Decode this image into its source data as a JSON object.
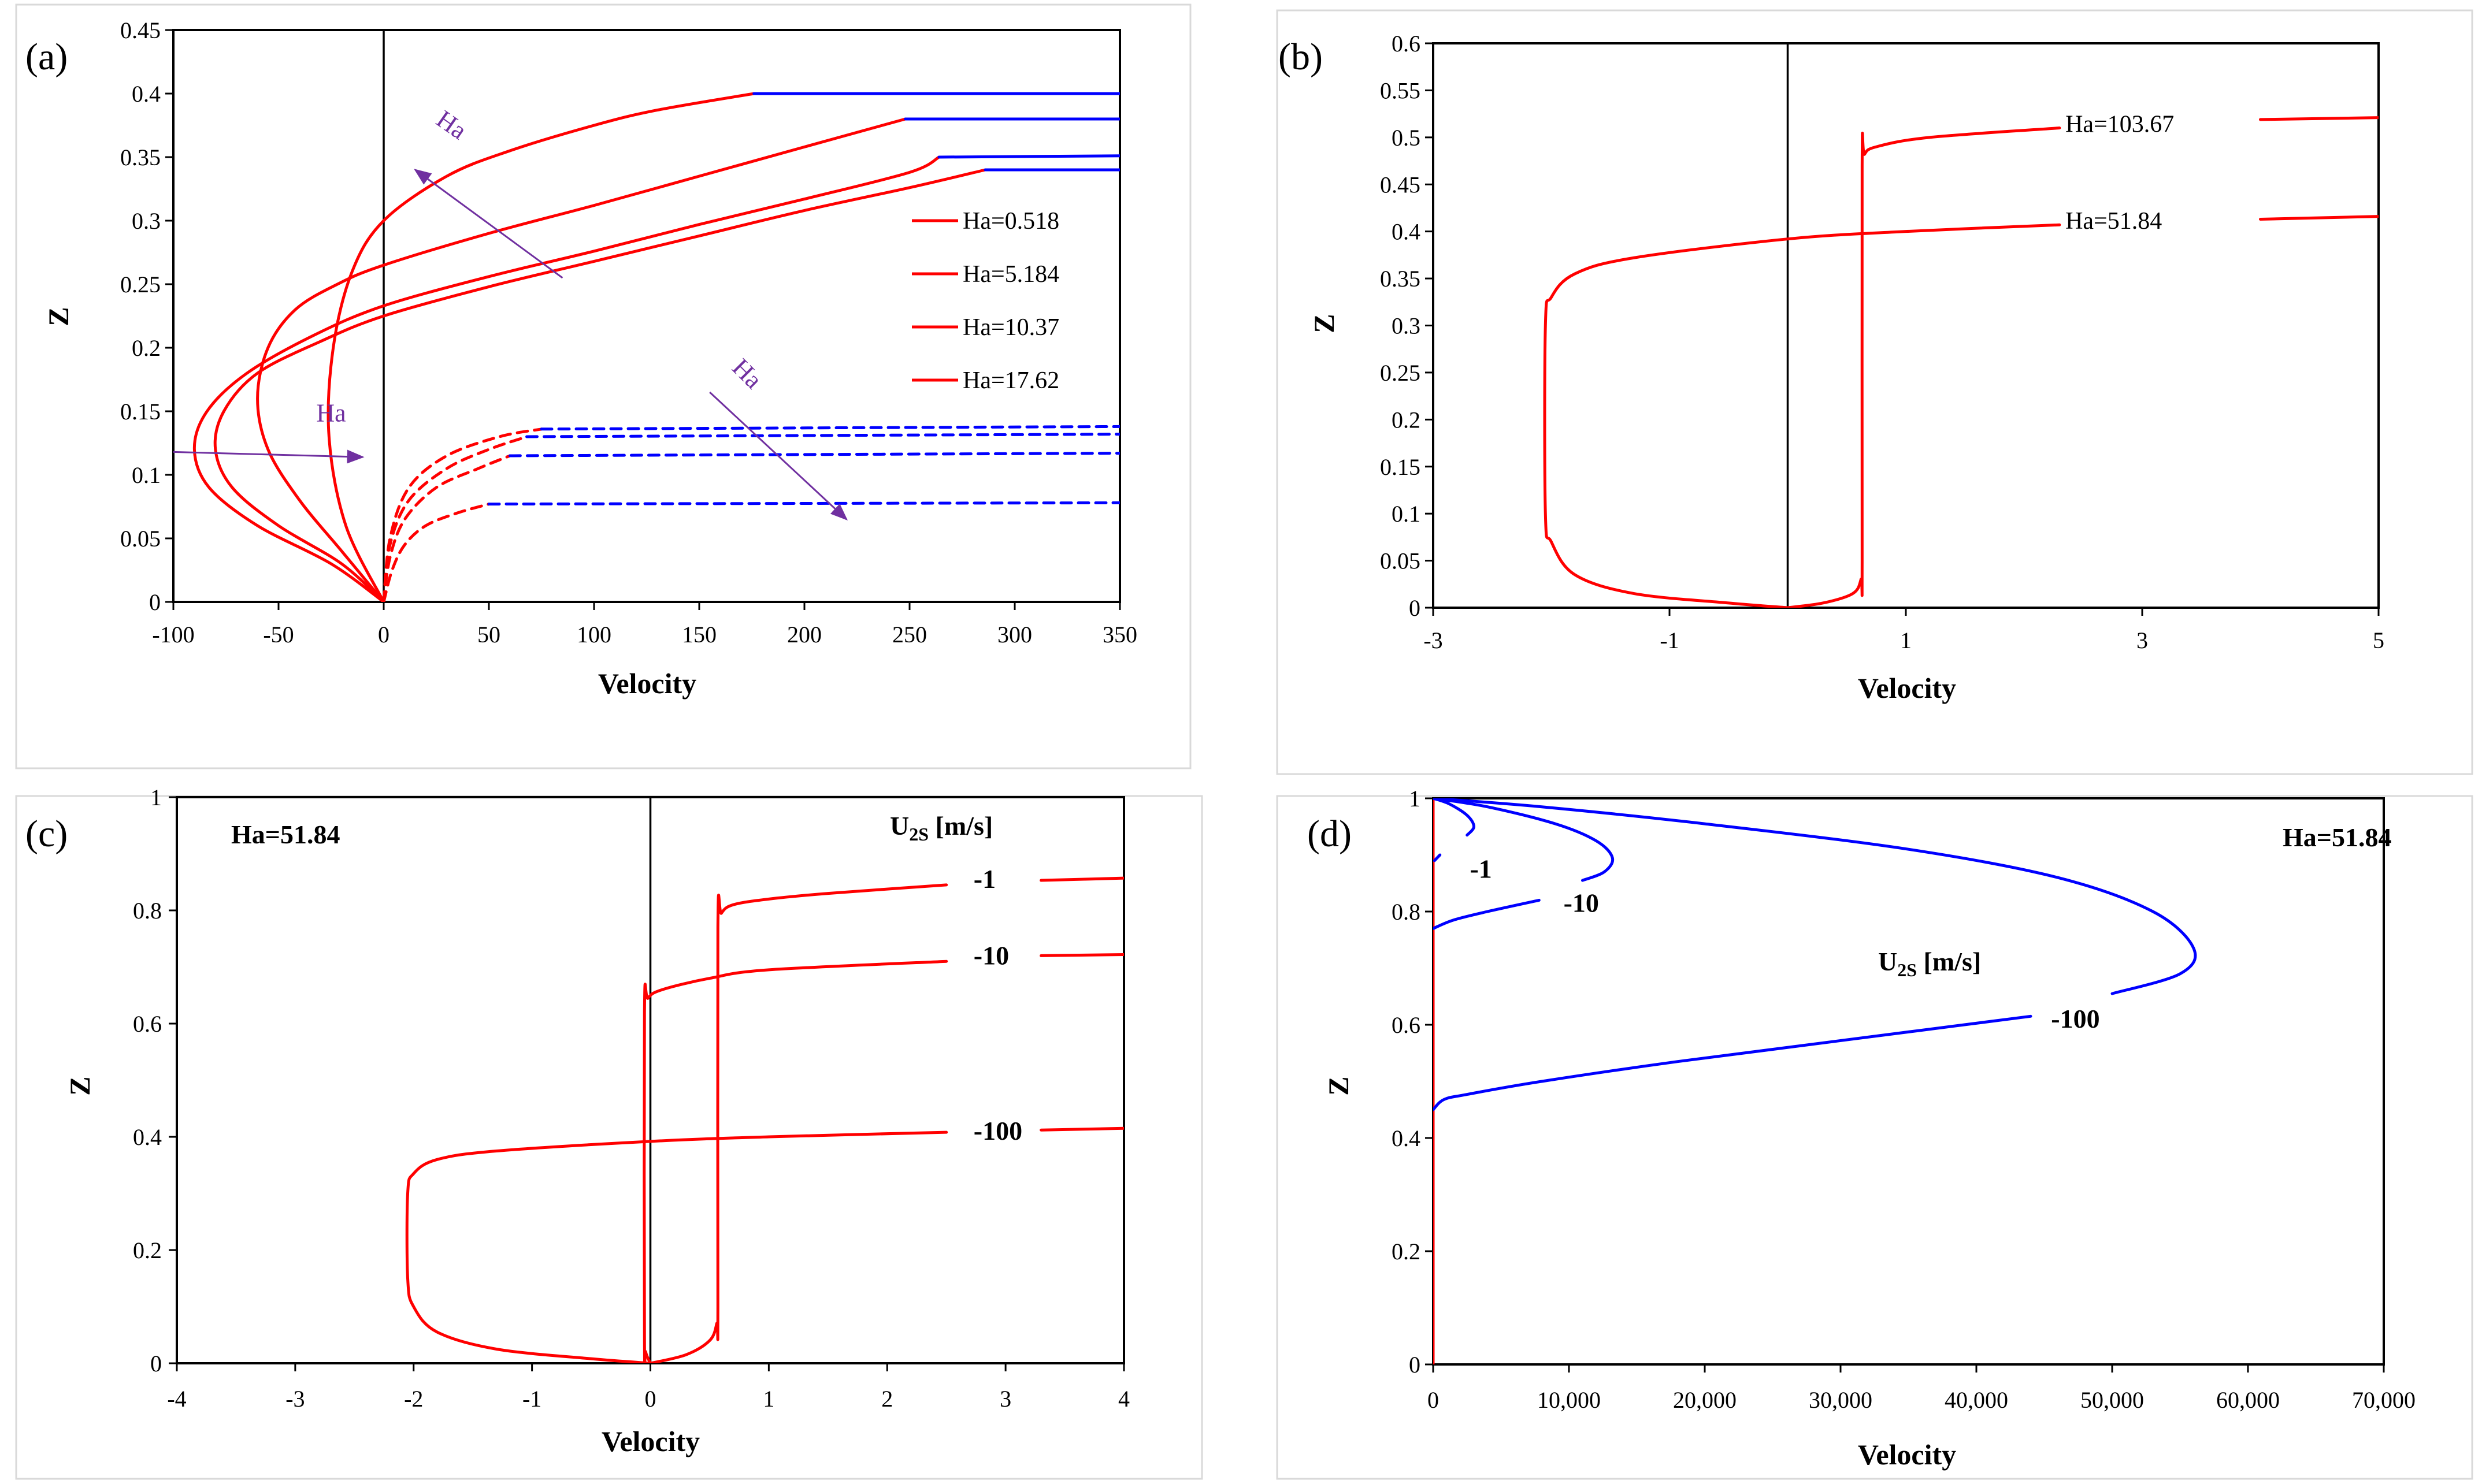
{
  "colors": {
    "red": "#ff0000",
    "blue": "#0000ff",
    "purple": "#7030a0",
    "black": "#000000"
  },
  "chart_data": [
    {
      "panel": "(a)",
      "type": "line",
      "xlabel": "Velocity",
      "ylabel": "Z",
      "xlim": [
        -100,
        350
      ],
      "ylim": [
        0,
        0.45
      ],
      "xticks": [
        -100,
        -50,
        0,
        50,
        100,
        150,
        200,
        250,
        300,
        350
      ],
      "yticks": [
        0,
        0.05,
        0.1,
        0.15,
        0.2,
        0.25,
        0.3,
        0.35,
        0.4,
        0.45
      ],
      "legend_position": "right",
      "legend": [
        "Ha=0.518",
        "Ha=5.184",
        "Ha=10.37",
        "Ha=17.62"
      ],
      "annotations": [
        "Ha",
        "Ha",
        "Ha"
      ],
      "series": [
        {
          "name": "Ha=0.518",
          "style": "solid",
          "color": "#ff0000",
          "x": [
            0,
            -20,
            -50,
            -72,
            -80,
            -76,
            -60,
            -30,
            0,
            50,
            100,
            150,
            200,
            250,
            286
          ],
          "y": [
            0,
            0.03,
            0.06,
            0.09,
            0.12,
            0.15,
            0.18,
            0.205,
            0.225,
            0.248,
            0.268,
            0.288,
            0.308,
            0.326,
            0.34
          ]
        },
        {
          "name": "Ha=0.518 (lower)",
          "style": "dashed",
          "color": "#ff0000",
          "x": [
            0,
            4,
            10,
            20,
            35,
            50
          ],
          "y": [
            0,
            0.025,
            0.045,
            0.06,
            0.07,
            0.077
          ]
        },
        {
          "name": "Ha=0.518 (lower ext)",
          "style": "dashed",
          "color": "#0000ff",
          "x": [
            50,
            350
          ],
          "y": [
            0.077,
            0.078
          ]
        },
        {
          "name": "Ha=0.518 (upper ext)",
          "style": "solid",
          "color": "#0000ff",
          "x": [
            286,
            350
          ],
          "y": [
            0.34,
            0.34
          ]
        },
        {
          "name": "Ha=5.184",
          "style": "solid",
          "color": "#ff0000",
          "x": [
            0,
            -25,
            -60,
            -83,
            -90,
            -84,
            -65,
            -33,
            0,
            50,
            100,
            150,
            200,
            250,
            264
          ],
          "y": [
            0,
            0.03,
            0.06,
            0.09,
            0.12,
            0.15,
            0.18,
            0.21,
            0.233,
            0.256,
            0.276,
            0.297,
            0.317,
            0.338,
            0.35
          ]
        },
        {
          "name": "Ha=5.184 (lower)",
          "style": "dashed",
          "color": "#ff0000",
          "x": [
            0,
            3,
            10,
            25,
            45,
            60
          ],
          "y": [
            0,
            0.035,
            0.065,
            0.09,
            0.105,
            0.115
          ]
        },
        {
          "name": "Ha=5.184 (lower ext)",
          "style": "dashed",
          "color": "#0000ff",
          "x": [
            60,
            350
          ],
          "y": [
            0.115,
            0.117
          ]
        },
        {
          "name": "Ha=5.184 (upper ext)",
          "style": "solid",
          "color": "#0000ff",
          "x": [
            264,
            350
          ],
          "y": [
            0.35,
            0.351
          ]
        },
        {
          "name": "Ha=10.37",
          "style": "solid",
          "color": "#ff0000",
          "x": [
            0,
            -20,
            -40,
            -55,
            -60,
            -55,
            -42,
            -22,
            0,
            50,
            100,
            150,
            200,
            248
          ],
          "y": [
            0,
            0.04,
            0.08,
            0.12,
            0.16,
            0.2,
            0.23,
            0.25,
            0.265,
            0.29,
            0.312,
            0.335,
            0.358,
            0.38
          ]
        },
        {
          "name": "Ha=10.37 (lower)",
          "style": "dashed",
          "color": "#ff0000",
          "x": [
            0,
            3,
            12,
            30,
            50,
            68
          ],
          "y": [
            0,
            0.045,
            0.08,
            0.105,
            0.12,
            0.13
          ]
        },
        {
          "name": "Ha=10.37 (lower ext)",
          "style": "dashed",
          "color": "#0000ff",
          "x": [
            68,
            350
          ],
          "y": [
            0.13,
            0.132
          ]
        },
        {
          "name": "Ha=10.37 (upper ext)",
          "style": "solid",
          "color": "#0000ff",
          "x": [
            248,
            350
          ],
          "y": [
            0.38,
            0.38
          ]
        },
        {
          "name": "Ha=17.62",
          "style": "solid",
          "color": "#ff0000",
          "x": [
            0,
            -18,
            -26,
            -24,
            -15,
            0,
            30,
            60,
            100,
            130,
            176
          ],
          "y": [
            0,
            0.06,
            0.13,
            0.2,
            0.26,
            0.3,
            0.335,
            0.355,
            0.375,
            0.387,
            0.4
          ]
        },
        {
          "name": "Ha=17.62 (lower)",
          "style": "dashed",
          "color": "#ff0000",
          "x": [
            0,
            3,
            12,
            30,
            55,
            75
          ],
          "y": [
            0,
            0.05,
            0.09,
            0.115,
            0.13,
            0.136
          ]
        },
        {
          "name": "Ha=17.62 (lower ext)",
          "style": "dashed",
          "color": "#0000ff",
          "x": [
            75,
            350
          ],
          "y": [
            0.136,
            0.138
          ]
        },
        {
          "name": "Ha=17.62 (upper ext)",
          "style": "solid",
          "color": "#0000ff",
          "x": [
            176,
            350
          ],
          "y": [
            0.4,
            0.4
          ]
        }
      ]
    },
    {
      "panel": "(b)",
      "type": "line",
      "xlabel": "Velocity",
      "ylabel": "Z",
      "xlim": [
        -3,
        5
      ],
      "ylim": [
        0,
        0.6
      ],
      "xticks": [
        -3,
        -1,
        1,
        3,
        5
      ],
      "yticks": [
        0,
        0.05,
        0.1,
        0.15,
        0.2,
        0.25,
        0.3,
        0.35,
        0.4,
        0.45,
        0.5,
        0.55,
        0.6
      ],
      "labels": [
        {
          "text": "Ha=103.67",
          "x": 2.35,
          "y": 0.515
        },
        {
          "text": "Ha=51.84",
          "x": 2.35,
          "y": 0.412
        }
      ],
      "series": [
        {
          "name": "Ha=51.84",
          "style": "solid",
          "color": "#ff0000",
          "x": [
            0,
            -0.5,
            -1.3,
            -1.8,
            -2.0,
            -2.05,
            -2.05,
            -2.0,
            -1.8,
            -1.3,
            0,
            1.0,
            2.3
          ],
          "y": [
            0,
            0.005,
            0.015,
            0.035,
            0.07,
            0.1,
            0.3,
            0.33,
            0.355,
            0.372,
            0.392,
            0.4,
            0.407
          ]
        },
        {
          "name": "Ha=51.84 (ext)",
          "style": "solid",
          "color": "#ff0000",
          "x": [
            4.0,
            5.0
          ],
          "y": [
            0.413,
            0.416
          ]
        },
        {
          "name": "Ha=103.67",
          "style": "solid",
          "color": "#ff0000",
          "x": [
            0,
            0.3,
            0.55,
            0.62,
            0.63,
            0.63,
            0.65,
            0.75,
            1.2,
            2.3
          ],
          "y": [
            0,
            0.005,
            0.015,
            0.03,
            0.05,
            0.47,
            0.482,
            0.49,
            0.5,
            0.51
          ]
        },
        {
          "name": "Ha=103.67 (ext)",
          "style": "solid",
          "color": "#ff0000",
          "x": [
            4.0,
            5.0
          ],
          "y": [
            0.519,
            0.521
          ]
        }
      ]
    },
    {
      "panel": "(c)",
      "type": "line",
      "title": "Ha=51.84",
      "xlabel": "Velocity",
      "ylabel": "Z",
      "xlim": [
        -4,
        4
      ],
      "ylim": [
        0,
        1
      ],
      "xticks": [
        -4,
        -3,
        -2,
        -1,
        0,
        1,
        2,
        3,
        4
      ],
      "yticks": [
        0,
        0.2,
        0.4,
        0.6,
        0.8,
        1
      ],
      "legend_title": "U2S [m/s]",
      "labels": [
        {
          "text": "-1",
          "x": 2.73,
          "y": 0.855
        },
        {
          "text": "-10",
          "x": 2.73,
          "y": 0.72
        },
        {
          "text": "-100",
          "x": 2.73,
          "y": 0.41
        }
      ],
      "series": [
        {
          "name": "-1",
          "style": "solid",
          "color": "#ff0000",
          "x": [
            0,
            0.3,
            0.5,
            0.56,
            0.57,
            0.57,
            0.6,
            0.7,
            1.0,
            1.5,
            2.5
          ],
          "y": [
            0,
            0.015,
            0.04,
            0.07,
            0.1,
            0.77,
            0.795,
            0.81,
            0.82,
            0.83,
            0.845
          ]
        },
        {
          "name": "-1 (ext)",
          "style": "solid",
          "color": "#ff0000",
          "x": [
            3.3,
            4.0
          ],
          "y": [
            0.853,
            0.857
          ]
        },
        {
          "name": "-10",
          "style": "solid",
          "color": "#ff0000",
          "x": [
            0,
            -0.04,
            -0.05,
            -0.05,
            -0.02,
            0.1,
            0.5,
            1.0,
            2.5
          ],
          "y": [
            0,
            0.02,
            0.05,
            0.62,
            0.645,
            0.66,
            0.68,
            0.695,
            0.71
          ]
        },
        {
          "name": "-10 (ext)",
          "style": "solid",
          "color": "#ff0000",
          "x": [
            3.3,
            4.0
          ],
          "y": [
            0.72,
            0.722
          ]
        },
        {
          "name": "-100",
          "style": "solid",
          "color": "#ff0000",
          "x": [
            0,
            -0.5,
            -1.3,
            -1.8,
            -2.0,
            -2.05,
            -2.05,
            -2.0,
            -1.8,
            -1.3,
            0,
            1.0,
            2.5
          ],
          "y": [
            0,
            0.008,
            0.025,
            0.055,
            0.1,
            0.15,
            0.3,
            0.335,
            0.36,
            0.375,
            0.392,
            0.4,
            0.408
          ]
        },
        {
          "name": "-100 (ext)",
          "style": "solid",
          "color": "#ff0000",
          "x": [
            3.3,
            4.0
          ],
          "y": [
            0.412,
            0.415
          ]
        }
      ]
    },
    {
      "panel": "(d)",
      "type": "line",
      "title": "Ha=51.84",
      "xlabel": "Velocity",
      "ylabel": "Z",
      "xlim": [
        0,
        70000
      ],
      "ylim": [
        0,
        1
      ],
      "xticks": [
        "0",
        "10,000",
        "20,000",
        "30,000",
        "40,000",
        "50,000",
        "60,000",
        "70,000"
      ],
      "yticks": [
        0,
        0.2,
        0.4,
        0.6,
        0.8,
        1
      ],
      "legend_title": "U2S [m/s]",
      "labels": [
        {
          "text": "-1",
          "x": 2700,
          "y": 0.875
        },
        {
          "text": "-10",
          "x": 9600,
          "y": 0.815
        },
        {
          "text": "-100",
          "x": 45500,
          "y": 0.61
        }
      ],
      "series": [
        {
          "name": "-1 (red)",
          "style": "solid",
          "color": "#ff0000",
          "x": [
            0,
            0
          ],
          "y": [
            0,
            1
          ]
        },
        {
          "name": "-1",
          "style": "solid",
          "color": "#0000ff",
          "x": [
            0,
            1200,
            2500,
            3000,
            2500
          ],
          "y": [
            1,
            0.99,
            0.97,
            0.95,
            0.935
          ]
        },
        {
          "name": "-1 (lower)",
          "style": "solid",
          "color": "#0000ff",
          "x": [
            100,
            500
          ],
          "y": [
            0.89,
            0.9
          ]
        },
        {
          "name": "-10 (upper)",
          "style": "solid",
          "color": "#0000ff",
          "x": [
            0,
            4000,
            9000,
            12000,
            13200,
            12600,
            11000
          ],
          "y": [
            1,
            0.985,
            0.955,
            0.925,
            0.895,
            0.87,
            0.855
          ]
        },
        {
          "name": "-10 (lower)",
          "style": "solid",
          "color": "#0000ff",
          "x": [
            7800,
            4000,
            1500,
            0
          ],
          "y": [
            0.82,
            0.8,
            0.785,
            0.77
          ]
        },
        {
          "name": "-100",
          "style": "solid",
          "color": "#0000ff",
          "x": [
            0,
            8000,
            20000,
            35000,
            46000,
            53000,
            56000,
            55000,
            50000
          ],
          "y": [
            1,
            0.985,
            0.955,
            0.91,
            0.86,
            0.8,
            0.735,
            0.69,
            0.655
          ]
        },
        {
          "name": "-100 (lower)",
          "style": "solid",
          "color": "#0000ff",
          "x": [
            44000,
            30000,
            18000,
            8000,
            2500,
            800,
            0
          ],
          "y": [
            0.615,
            0.572,
            0.535,
            0.5,
            0.477,
            0.468,
            0.45
          ]
        }
      ]
    }
  ]
}
